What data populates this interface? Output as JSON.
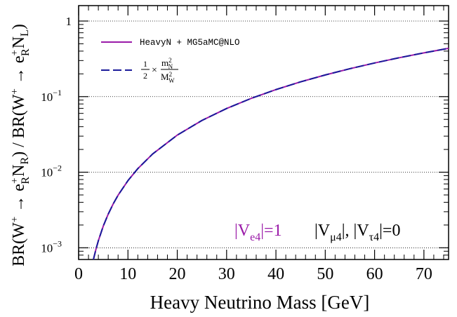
{
  "chart_data": {
    "type": "line",
    "xlabel": "Heavy Neutrino Mass [GeV]",
    "ylabel": {
      "parts": [
        "BR(W",
        "+",
        " → e",
        "+",
        "R",
        "N",
        "R",
        ") / BR(W",
        "+",
        " → e",
        "+",
        "R",
        "N",
        "L",
        ")"
      ]
    },
    "xlim": [
      0,
      75
    ],
    "ylim": [
      0.0007,
      1.6
    ],
    "yscale": "log",
    "grid": "horizontal dotted at decades",
    "xticks": [
      "0",
      "10",
      "20",
      "30",
      "40",
      "50",
      "60",
      "70"
    ],
    "xtick_values": [
      0,
      10,
      20,
      30,
      40,
      50,
      60,
      70
    ],
    "yticks": [
      {
        "value": 1,
        "base": "1",
        "exp": ""
      },
      {
        "value": 0.1,
        "base": "10",
        "exp": "−1"
      },
      {
        "value": 0.01,
        "base": "10",
        "exp": "−2"
      },
      {
        "value": 0.001,
        "base": "10",
        "exp": "−3"
      }
    ],
    "series": [
      {
        "name": "HeavyN + MG5aMC@NLO",
        "color": "#9a1aa8",
        "style": "solid",
        "x": [
          3,
          3.5,
          4,
          5,
          6,
          7,
          8,
          10,
          12,
          15,
          20,
          25,
          30,
          35,
          40,
          45,
          50,
          55,
          60,
          65,
          70,
          75
        ],
        "y": [
          0.0007,
          0.00095,
          0.00124,
          0.00194,
          0.00279,
          0.0038,
          0.00496,
          0.00774,
          0.01115,
          0.01742,
          0.03097,
          0.04839,
          0.06968,
          0.09485,
          0.1239,
          0.1568,
          0.1935,
          0.2342,
          0.2787,
          0.3271,
          0.3793,
          0.4355
        ]
      },
      {
        "name": "",
        "color": "#1a1a9a",
        "style": "dashed",
        "x": [
          3,
          3.5,
          4,
          5,
          6,
          7,
          8,
          10,
          12,
          15,
          20,
          25,
          30,
          35,
          40,
          45,
          50,
          55,
          60,
          65,
          70,
          75
        ],
        "y": [
          0.0007,
          0.00095,
          0.00124,
          0.00194,
          0.00279,
          0.0038,
          0.00496,
          0.00774,
          0.01115,
          0.01742,
          0.03097,
          0.04839,
          0.06968,
          0.09485,
          0.1239,
          0.1568,
          0.1935,
          0.2342,
          0.2787,
          0.3271,
          0.3793,
          0.4355
        ]
      }
    ],
    "legend": {
      "placement": "top-left",
      "entry1": "HeavyN + MG5aMC@NLO",
      "entry2_formula": {
        "frac_num": "1",
        "frac_den": "2",
        "times": "×",
        "num": "m",
        "num_sub": "N",
        "num_sup": "2",
        "den": "M",
        "den_sub": "W",
        "den_sup": "2"
      }
    },
    "annotations": {
      "left": {
        "text": "|V",
        "sub": "e4",
        "tail": "|=1",
        "color": "#9a1aa8"
      },
      "right": {
        "p1": "|V",
        "s1": "μ4",
        "p2": "|, |V",
        "s2": "τ4",
        "p3": "|=0",
        "color": "#000000"
      }
    }
  }
}
